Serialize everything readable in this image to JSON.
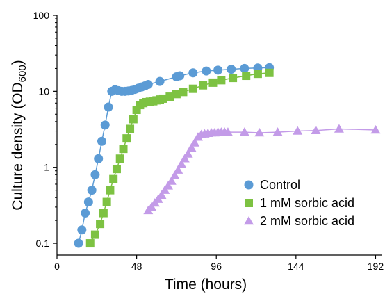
{
  "chart_data": {
    "type": "scatter",
    "xlabel": "Time (hours)",
    "ylabel": "Culture density (OD",
    "ylabel_sub": "600",
    "ylabel_close": ")",
    "xlim": [
      0,
      196
    ],
    "ylim": [
      0.07,
      100
    ],
    "y_scale": "log",
    "x_ticks": [
      0,
      48,
      96,
      144,
      192
    ],
    "x_tick_labels": [
      "0",
      "48",
      "96",
      "144",
      "192"
    ],
    "y_ticks": [
      0.1,
      1,
      10,
      100
    ],
    "y_tick_labels": [
      "0.1",
      "1",
      "10",
      "100"
    ],
    "grid": false,
    "legend_position": "lower-right",
    "series": [
      {
        "name": "Control",
        "marker": "circle",
        "color": "#5B9BD5",
        "x": [
          13,
          15,
          17,
          19,
          21,
          23,
          25,
          27,
          29,
          31,
          33,
          35,
          37,
          39,
          41,
          43,
          45,
          47,
          49,
          51,
          53,
          55,
          62,
          72,
          74,
          82,
          90,
          97,
          105,
          113,
          121,
          128
        ],
        "y": [
          0.1,
          0.15,
          0.25,
          0.35,
          0.5,
          0.8,
          1.3,
          2.2,
          3.6,
          6.2,
          10.0,
          10.5,
          10.2,
          10.0,
          10.0,
          10.1,
          10.3,
          10.6,
          11.0,
          11.4,
          11.8,
          12.3,
          13.5,
          15.5,
          16.0,
          17.5,
          18.5,
          19.0,
          19.5,
          20.0,
          20.3,
          20.5
        ]
      },
      {
        "name": "1 mM sorbic acid",
        "marker": "square",
        "color": "#7DC242",
        "x": [
          20,
          23,
          26,
          28,
          30,
          32,
          34,
          36,
          38,
          40,
          42,
          44,
          46,
          48,
          50,
          52,
          54,
          56,
          58,
          60,
          62,
          64,
          68,
          72,
          76,
          82,
          88,
          94,
          99,
          106,
          114,
          121,
          128
        ],
        "y": [
          0.1,
          0.13,
          0.18,
          0.25,
          0.35,
          0.5,
          0.7,
          0.95,
          1.3,
          1.75,
          2.4,
          3.2,
          4.3,
          5.7,
          6.6,
          7.0,
          7.2,
          7.3,
          7.4,
          7.6,
          7.8,
          8.0,
          8.5,
          9.2,
          9.8,
          10.8,
          12.0,
          13.0,
          14.0,
          15.0,
          16.0,
          17.0,
          17.5
        ]
      },
      {
        "name": "2 mM sorbic acid",
        "marker": "triangle",
        "color": "#C39BE8",
        "x": [
          55,
          57,
          59,
          61,
          63,
          65,
          67,
          69,
          71,
          73,
          75,
          77,
          79,
          81,
          83,
          85,
          87,
          89,
          91,
          93,
          95,
          97,
          99,
          101,
          103,
          113,
          122,
          133,
          145,
          156,
          170,
          192
        ],
        "y": [
          0.27,
          0.3,
          0.34,
          0.38,
          0.43,
          0.5,
          0.57,
          0.66,
          0.78,
          0.92,
          1.1,
          1.3,
          1.5,
          1.8,
          2.1,
          2.5,
          2.7,
          2.75,
          2.8,
          2.85,
          2.85,
          2.9,
          2.9,
          2.9,
          2.9,
          2.9,
          2.85,
          2.9,
          3.0,
          3.05,
          3.2,
          3.1
        ]
      }
    ]
  }
}
